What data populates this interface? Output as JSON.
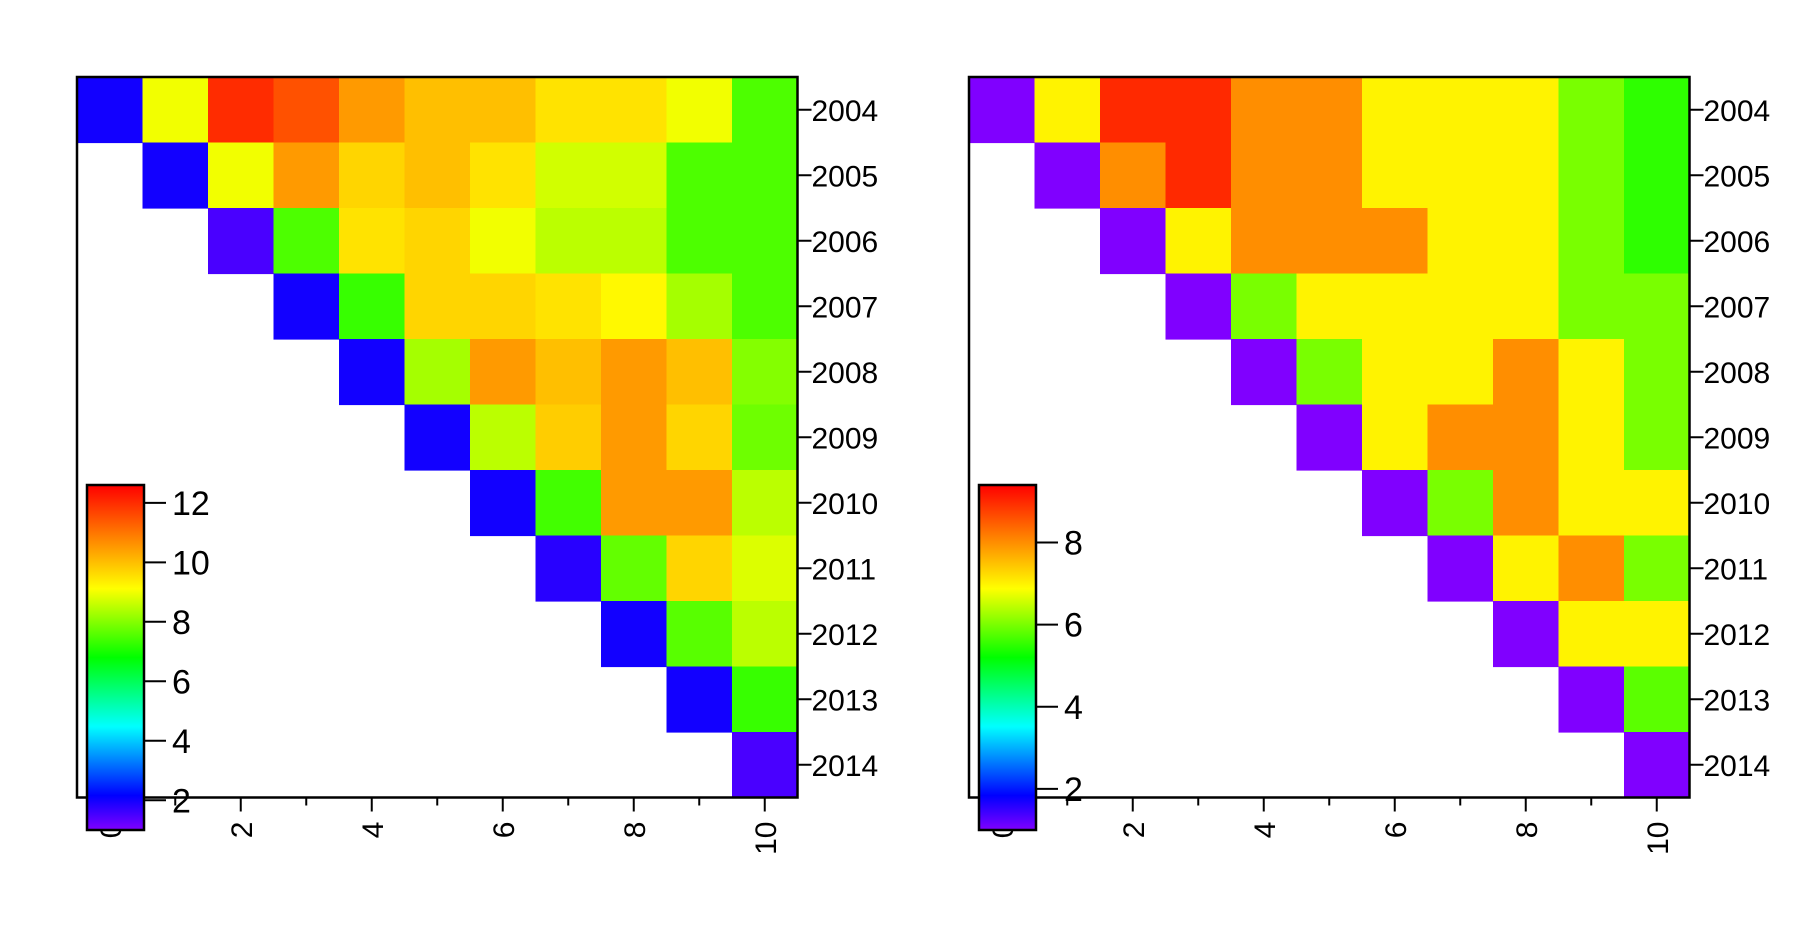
{
  "chart_data": [
    {
      "type": "heatmap",
      "title": "",
      "xlabel": "",
      "ylabel": "",
      "x_ticks": [
        "0",
        "2",
        "4",
        "6",
        "8",
        "10"
      ],
      "y_labels": [
        "2004",
        "2005",
        "2006",
        "2007",
        "2008",
        "2009",
        "2010",
        "2011",
        "2012",
        "2013",
        "2014"
      ],
      "x_range": [
        0,
        10
      ],
      "colorbar": {
        "min": 1,
        "max": 12.6,
        "ticks": [
          "2",
          "4",
          "6",
          "8",
          "10",
          "12"
        ],
        "colormap": "rainbow (violet-blue-cyan-green-yellow-red)"
      },
      "rows": [
        [
          2,
          9,
          12,
          11.5,
          10.5,
          10,
          10,
          9.5,
          9.5,
          9,
          7.5
        ],
        [
          2,
          9,
          10.5,
          9.7,
          10,
          9.5,
          8.7,
          8.7,
          7.5,
          7.5
        ],
        [
          1.5,
          7.5,
          9.5,
          9.7,
          9,
          8.5,
          8.5,
          7.5,
          7.5
        ],
        [
          2,
          7.3,
          9.7,
          9.7,
          9.5,
          9.2,
          8.3,
          7.5
        ],
        [
          2,
          8.3,
          10.5,
          10,
          10.5,
          10,
          8
        ],
        [
          2,
          8.5,
          9.8,
          10.5,
          9.7,
          7.8
        ],
        [
          2,
          7.4,
          10.5,
          10.5,
          8.5
        ],
        [
          1.8,
          7.7,
          9.7,
          8.8
        ],
        [
          2,
          7.6,
          8.5
        ],
        [
          2,
          7.3
        ],
        [
          1.5
        ]
      ]
    },
    {
      "type": "heatmap",
      "title": "",
      "xlabel": "",
      "ylabel": "",
      "x_ticks": [
        "0",
        "2",
        "4",
        "6",
        "8",
        "10"
      ],
      "y_labels": [
        "2004",
        "2005",
        "2006",
        "2007",
        "2008",
        "2009",
        "2010",
        "2011",
        "2012",
        "2013",
        "2014"
      ],
      "x_range": [
        0,
        10
      ],
      "colorbar": {
        "min": 1,
        "max": 9.4,
        "ticks": [
          "2",
          "4",
          "6",
          "8"
        ],
        "colormap": "rainbow (violet-blue-cyan-green-yellow-red)"
      },
      "rows": [
        [
          1,
          7,
          9,
          9,
          8,
          8,
          7,
          7,
          7,
          6,
          5.5
        ],
        [
          1,
          8,
          9,
          8,
          8,
          7,
          7,
          7,
          6,
          5.5
        ],
        [
          1,
          7,
          8,
          8,
          8,
          7,
          7,
          6,
          5.5
        ],
        [
          1,
          6,
          7,
          7,
          7,
          7,
          6,
          6
        ],
        [
          1,
          6,
          7,
          7,
          8,
          7,
          6
        ],
        [
          1,
          7,
          8,
          8,
          7,
          6
        ],
        [
          1,
          6,
          8,
          7,
          7
        ],
        [
          1,
          7,
          8,
          6
        ],
        [
          1,
          7,
          7
        ],
        [
          1,
          5.8
        ],
        [
          1
        ]
      ]
    }
  ]
}
